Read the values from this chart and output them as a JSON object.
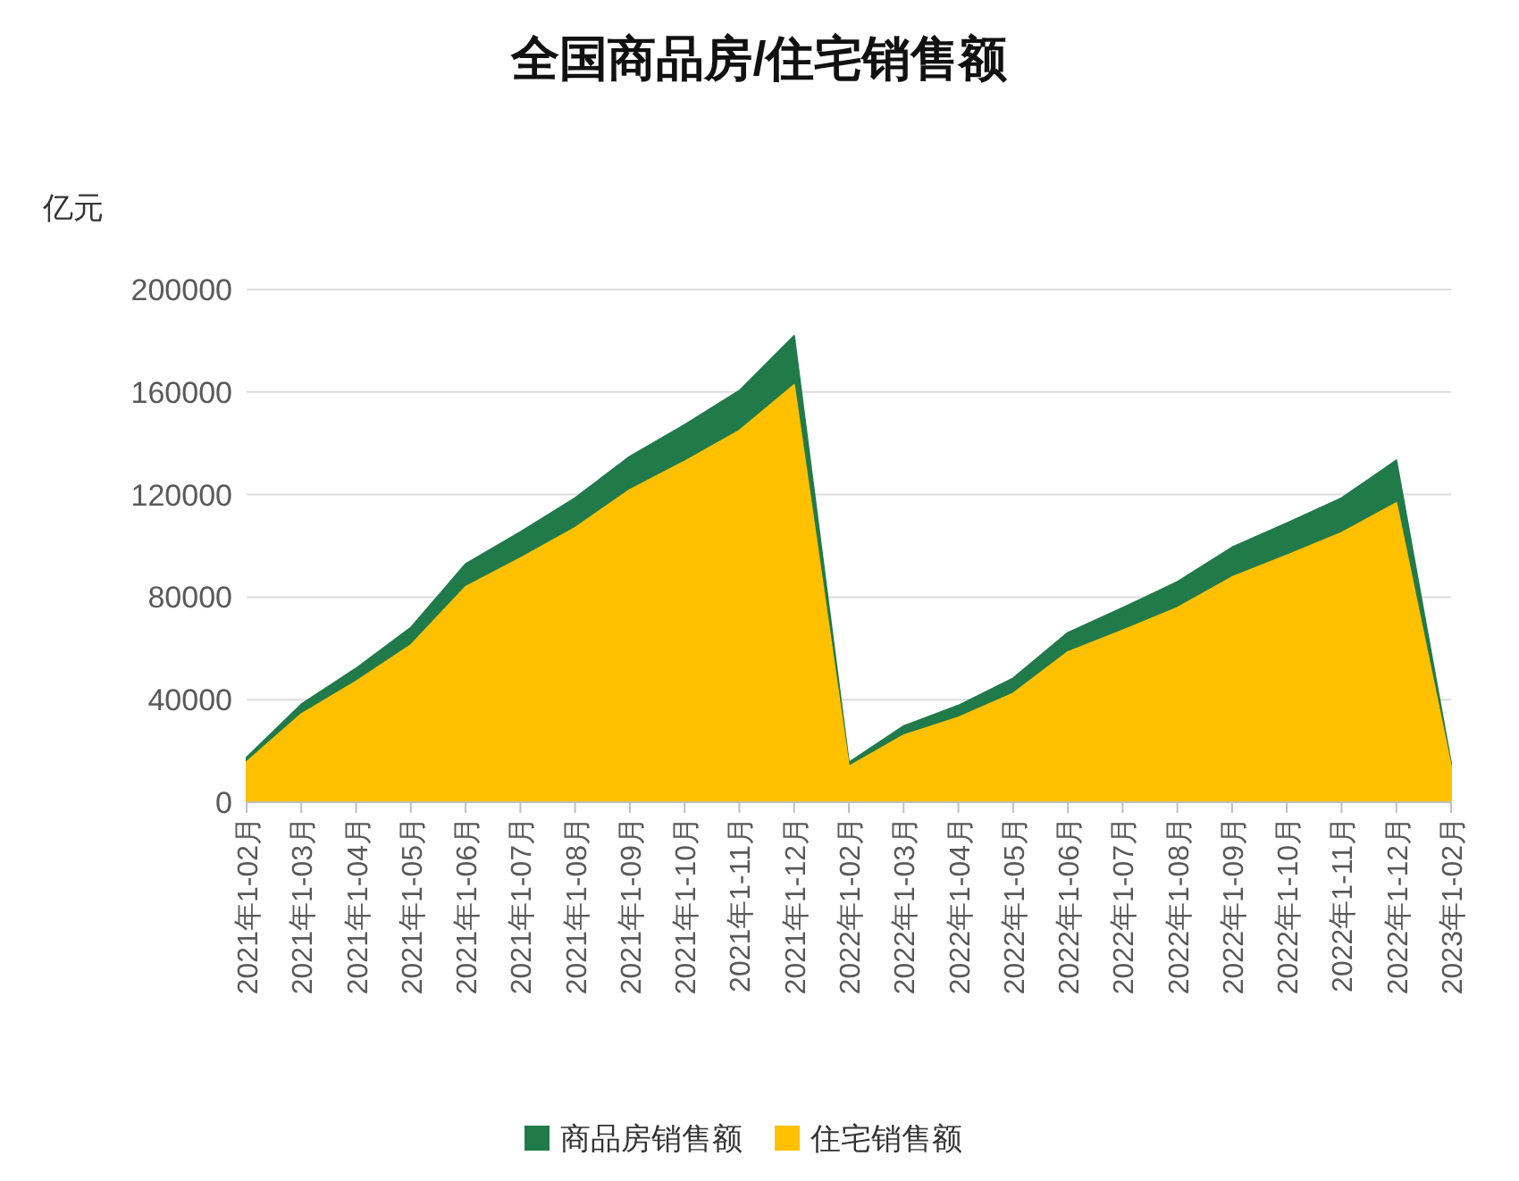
{
  "chart_data": {
    "type": "area",
    "title": "全国商品房/住宅销售额",
    "ylabel": "亿元",
    "categories": [
      "2021年1-02月",
      "2021年1-03月",
      "2021年1-04月",
      "2021年1-05月",
      "2021年1-06月",
      "2021年1-07月",
      "2021年1-08月",
      "2021年1-09月",
      "2021年1-10月",
      "2021年1-11月",
      "2021年1-12月",
      "2022年1-02月",
      "2022年1-03月",
      "2022年1-04月",
      "2022年1-05月",
      "2022年1-06月",
      "2022年1-07月",
      "2022年1-08月",
      "2022年1-09月",
      "2022年1-10月",
      "2022年1-11月",
      "2022年1-12月",
      "2023年1-02月"
    ],
    "series": [
      {
        "name": "商品房销售额",
        "color": "#217a4a",
        "values": [
          17400,
          38200,
          52200,
          68100,
          92900,
          105400,
          118600,
          134800,
          147200,
          160500,
          181900,
          15500,
          29700,
          37700,
          48300,
          66100,
          75800,
          85900,
          99400,
          108800,
          118600,
          133300,
          15100
        ]
      },
      {
        "name": "住宅销售额",
        "color": "#ffc000",
        "values": [
          15700,
          34400,
          47100,
          61300,
          84000,
          95200,
          107000,
          121800,
          132900,
          144900,
          162700,
          13900,
          26100,
          33000,
          42400,
          58600,
          67000,
          75800,
          87800,
          96300,
          105100,
          116700,
          13800
        ]
      }
    ],
    "ylim": [
      0,
      200000
    ],
    "yticks": [
      0,
      40000,
      80000,
      120000,
      160000,
      200000
    ],
    "grid": "y",
    "legend": "bottom"
  }
}
